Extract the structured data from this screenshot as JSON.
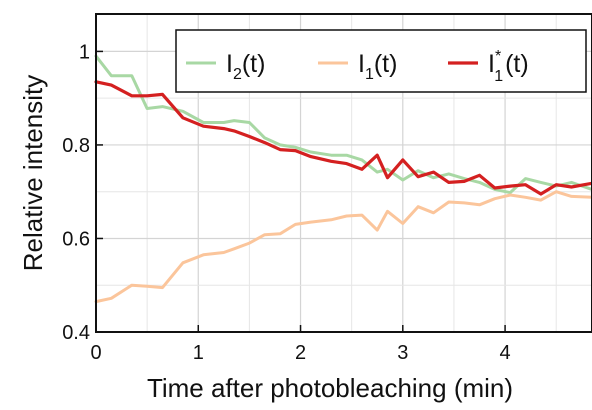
{
  "chart_data": {
    "type": "line",
    "xlabel": "Time after photobleaching (min)",
    "ylabel": "Relative intensity",
    "xlim": [
      0,
      4.85
    ],
    "ylim": [
      0.4,
      1.08
    ],
    "xticks": [
      "0",
      "1",
      "2",
      "3",
      "4"
    ],
    "yticks": [
      "0.4",
      "0.6",
      "0.8",
      "1"
    ],
    "xtick_values": [
      0,
      1,
      2,
      3,
      4
    ],
    "ytick_values": [
      0.4,
      0.6,
      0.8,
      1.0
    ],
    "grid": true,
    "legend_position": "top-right",
    "series": [
      {
        "key": "I2",
        "name": "I2(t)",
        "label_base": "I",
        "label_sub": "2",
        "label_sup": "",
        "label_tail": "(t)",
        "color": "#a8d8a4",
        "width": 3,
        "x": [
          0,
          0.15,
          0.35,
          0.5,
          0.65,
          0.85,
          1.05,
          1.25,
          1.35,
          1.5,
          1.65,
          1.8,
          1.95,
          2.1,
          2.3,
          2.45,
          2.6,
          2.75,
          2.85,
          3.0,
          3.15,
          3.3,
          3.45,
          3.6,
          3.75,
          3.9,
          4.05,
          4.2,
          4.35,
          4.5,
          4.65,
          4.85
        ],
        "y": [
          0.99,
          0.948,
          0.948,
          0.878,
          0.882,
          0.872,
          0.848,
          0.848,
          0.852,
          0.848,
          0.815,
          0.8,
          0.795,
          0.785,
          0.778,
          0.778,
          0.768,
          0.742,
          0.748,
          0.725,
          0.745,
          0.73,
          0.738,
          0.728,
          0.72,
          0.705,
          0.698,
          0.728,
          0.72,
          0.712,
          0.72,
          0.705
        ]
      },
      {
        "key": "I1",
        "name": "I1(t)",
        "label_base": "I",
        "label_sub": "1",
        "label_sup": "",
        "label_tail": "(t)",
        "color": "#fbc59b",
        "width": 3,
        "x": [
          0,
          0.15,
          0.35,
          0.5,
          0.65,
          0.85,
          1.05,
          1.25,
          1.35,
          1.5,
          1.65,
          1.8,
          1.95,
          2.1,
          2.3,
          2.45,
          2.6,
          2.75,
          2.85,
          3.0,
          3.15,
          3.3,
          3.45,
          3.6,
          3.75,
          3.9,
          4.05,
          4.2,
          4.35,
          4.5,
          4.65,
          4.85
        ],
        "y": [
          0.465,
          0.472,
          0.5,
          0.498,
          0.495,
          0.548,
          0.565,
          0.57,
          0.578,
          0.59,
          0.608,
          0.61,
          0.63,
          0.635,
          0.64,
          0.648,
          0.65,
          0.618,
          0.658,
          0.632,
          0.668,
          0.655,
          0.678,
          0.676,
          0.672,
          0.685,
          0.693,
          0.688,
          0.682,
          0.7,
          0.69,
          0.688
        ]
      },
      {
        "key": "I1star",
        "name": "I1*(t)",
        "label_base": "I",
        "label_sub": "1",
        "label_sup": "*",
        "label_tail": "(t)",
        "color": "#d42020",
        "width": 3.2,
        "x": [
          0,
          0.15,
          0.35,
          0.5,
          0.65,
          0.85,
          1.05,
          1.25,
          1.35,
          1.5,
          1.65,
          1.8,
          1.95,
          2.1,
          2.3,
          2.45,
          2.6,
          2.75,
          2.85,
          3.0,
          3.15,
          3.3,
          3.45,
          3.6,
          3.75,
          3.9,
          4.05,
          4.2,
          4.35,
          4.5,
          4.65,
          4.85
        ],
        "y": [
          0.935,
          0.928,
          0.905,
          0.905,
          0.908,
          0.858,
          0.84,
          0.835,
          0.83,
          0.818,
          0.805,
          0.79,
          0.788,
          0.775,
          0.765,
          0.76,
          0.748,
          0.778,
          0.73,
          0.768,
          0.732,
          0.742,
          0.72,
          0.722,
          0.735,
          0.708,
          0.712,
          0.715,
          0.695,
          0.715,
          0.71,
          0.718
        ]
      }
    ]
  }
}
